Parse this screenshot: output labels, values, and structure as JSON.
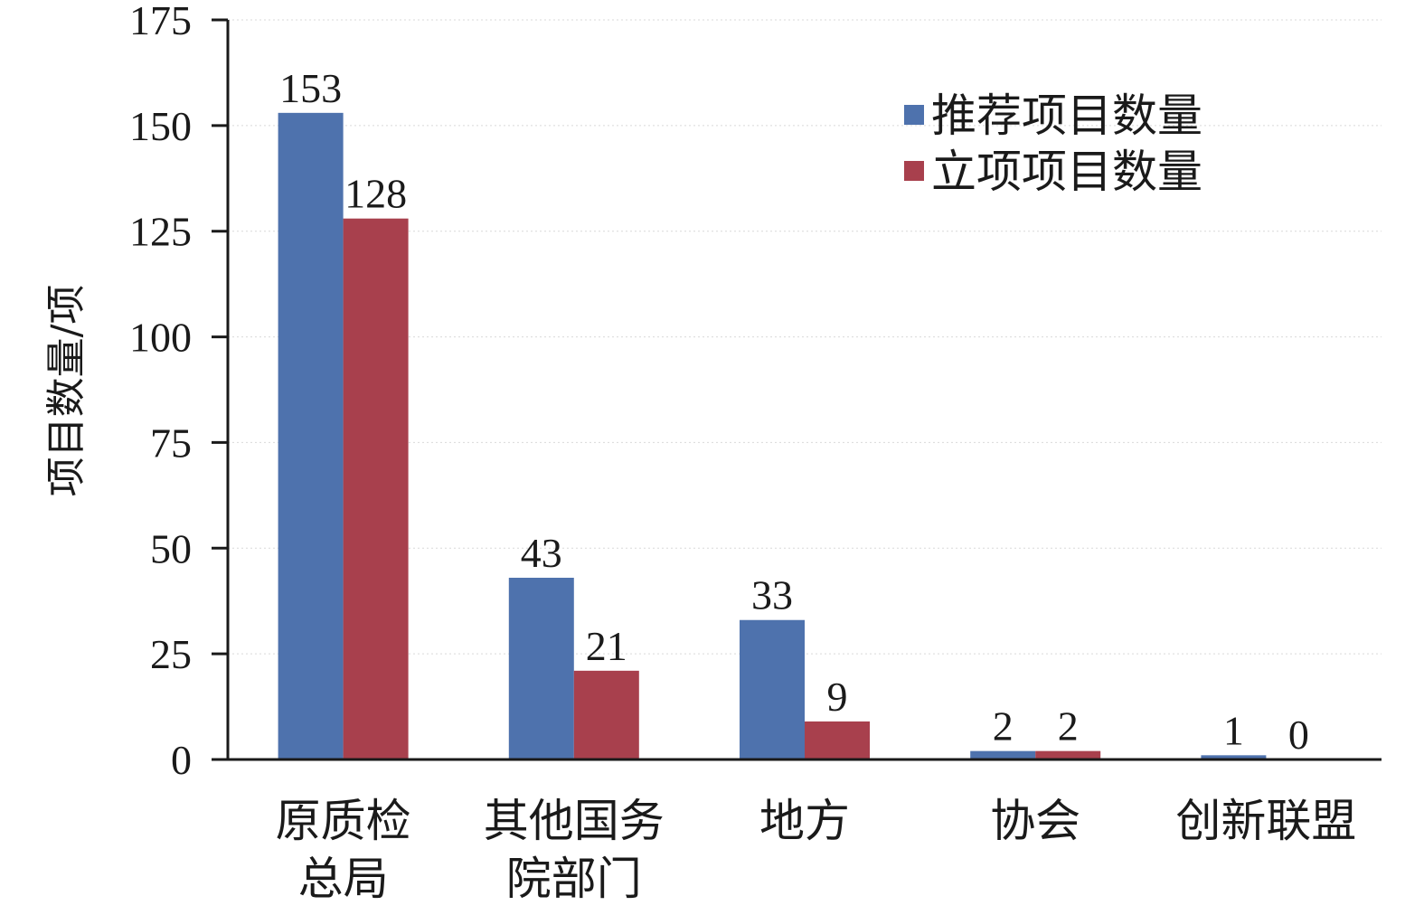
{
  "chart_data": {
    "type": "bar",
    "categories": [
      [
        "原质检",
        "总局"
      ],
      [
        "其他国务",
        "院部门"
      ],
      [
        "地方"
      ],
      [
        "协会"
      ],
      [
        "创新联盟"
      ]
    ],
    "series": [
      {
        "name": "推荐项目数量",
        "values": [
          153,
          43,
          33,
          2,
          1
        ],
        "color": "#4e72ad"
      },
      {
        "name": "立项项目数量",
        "values": [
          128,
          21,
          9,
          2,
          0
        ],
        "color": "#a8404d"
      }
    ],
    "title": "",
    "xlabel": "",
    "ylabel": "项目数量/项",
    "ylim": [
      0,
      175
    ],
    "yticks": [
      0,
      25,
      50,
      75,
      100,
      125,
      150,
      175
    ],
    "grid": true,
    "legend_position": "top-right"
  }
}
